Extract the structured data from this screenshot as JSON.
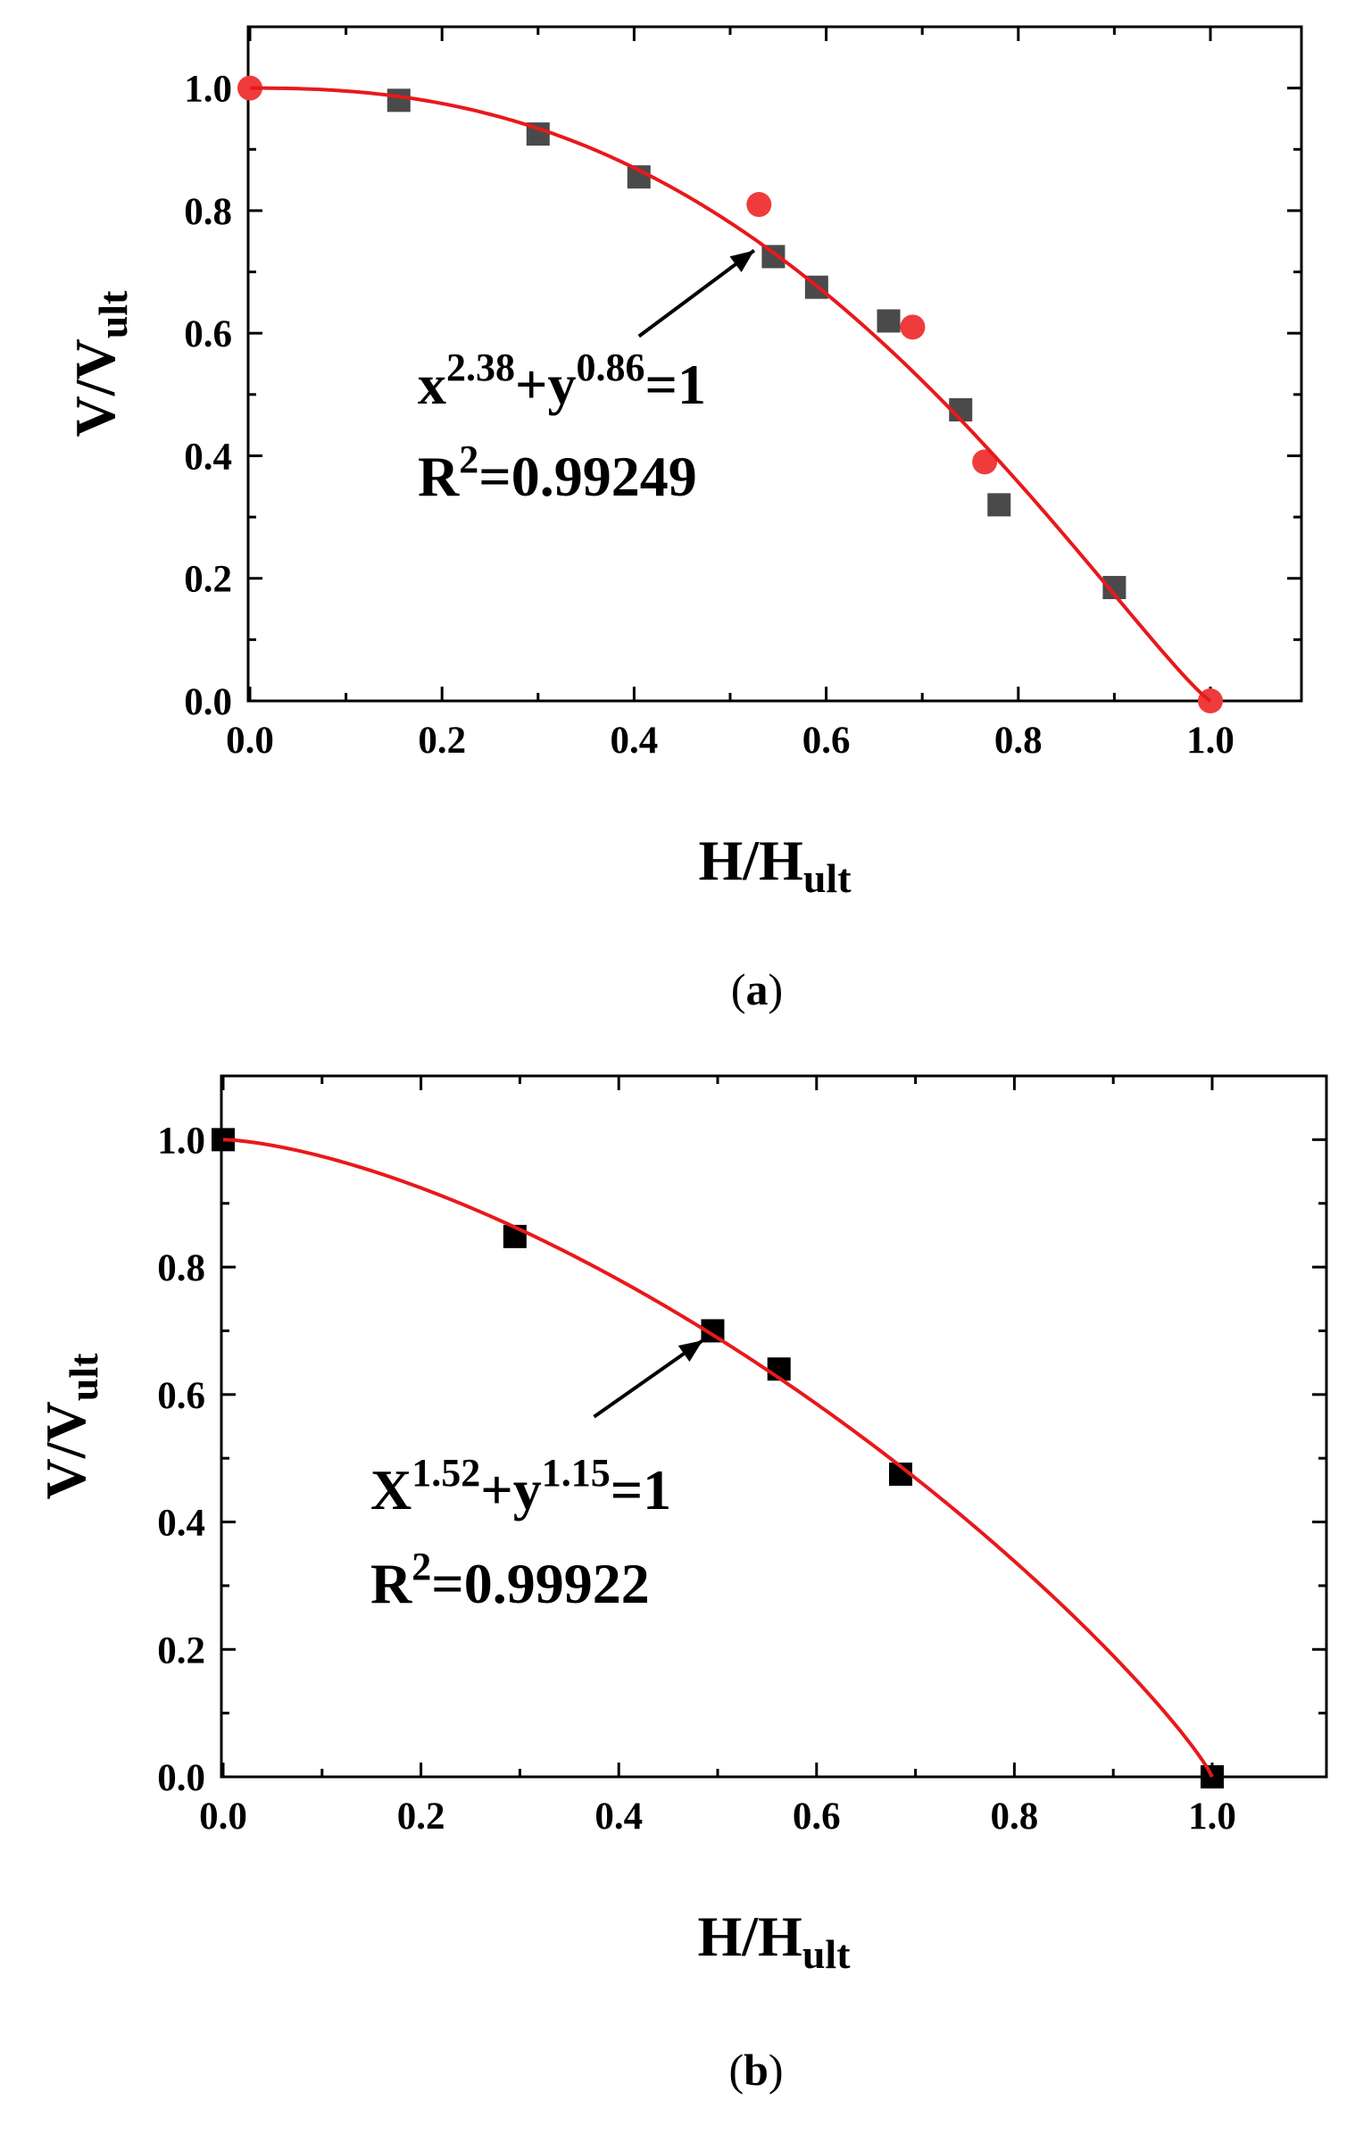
{
  "colors": {
    "fit": "#e8191b",
    "series_a_square": "#4a4a4a",
    "series_a_circle": "#ef3b3b",
    "series_b_square": "#000000"
  },
  "chart_data": [
    {
      "type": "scatter",
      "panel_label": {
        "open": "(",
        "letter": "a",
        "close": ")"
      },
      "xlabel": {
        "main": "H/H",
        "sub": "ult"
      },
      "ylabel": {
        "main": "V/V",
        "sub": "ult"
      },
      "xlim": [
        0.0,
        1.1
      ],
      "ylim": [
        0.0,
        1.1
      ],
      "xticks": [
        "0.0",
        "0.2",
        "0.4",
        "0.6",
        "0.8",
        "1.0"
      ],
      "yticks": [
        "0.0",
        "0.2",
        "0.4",
        "0.6",
        "0.8",
        "1.0"
      ],
      "grid": false,
      "series": [
        {
          "marker": "square",
          "color": "#4a4a4a",
          "x": [
            0.155,
            0.3,
            0.405,
            0.545,
            0.59,
            0.665,
            0.74,
            0.78,
            0.9
          ],
          "y": [
            0.98,
            0.925,
            0.855,
            0.725,
            0.675,
            0.62,
            0.475,
            0.32,
            0.185
          ]
        },
        {
          "marker": "circle",
          "color": "#ef3b3b",
          "x": [
            0.0,
            0.53,
            0.69,
            0.765,
            1.0
          ],
          "y": [
            1.0,
            0.81,
            0.61,
            0.39,
            0.0
          ]
        }
      ],
      "fit": {
        "color": "#e8191b",
        "x_exponent": 2.38,
        "y_exponent": 0.86
      },
      "equation": {
        "var_x": "x",
        "exp_x": "2.38",
        "plus": "+",
        "var_y": "y",
        "exp_y": "0.86",
        "rhs": "=1"
      },
      "r2": {
        "base": "R",
        "exp": "2",
        "value": "=0.99249"
      },
      "annotation_arrow": {
        "from": [
          0.405,
          0.595
        ],
        "to": [
          0.525,
          0.735
        ]
      }
    },
    {
      "type": "scatter",
      "panel_label": {
        "open": "(",
        "letter": "b",
        "close": ")"
      },
      "xlabel": {
        "main": "H/H",
        "sub": "ult"
      },
      "ylabel": {
        "main": "V/V",
        "sub": "ult"
      },
      "xlim": [
        0.0,
        1.1
      ],
      "ylim": [
        0.0,
        1.1
      ],
      "xticks": [
        "0.0",
        "0.2",
        "0.4",
        "0.6",
        "0.8",
        "1.0"
      ],
      "yticks": [
        "0.0",
        "0.2",
        "0.4",
        "0.6",
        "0.8",
        "1.0"
      ],
      "grid": false,
      "series": [
        {
          "marker": "square",
          "color": "#000000",
          "x": [
            0.0,
            0.295,
            0.495,
            0.562,
            0.685,
            1.0
          ],
          "y": [
            1.0,
            0.848,
            0.7,
            0.64,
            0.475,
            0.0
          ]
        }
      ],
      "fit": {
        "color": "#e8191b",
        "x_exponent": 1.52,
        "y_exponent": 1.15
      },
      "equation": {
        "var_x": "X",
        "exp_x": "1.52",
        "plus": "+",
        "var_y": "y",
        "exp_y": "1.15",
        "rhs": "=1"
      },
      "r2": {
        "base": "R",
        "exp": "2",
        "value": "=0.99922"
      },
      "annotation_arrow": {
        "from": [
          0.375,
          0.565
        ],
        "to": [
          0.485,
          0.685
        ]
      }
    }
  ]
}
